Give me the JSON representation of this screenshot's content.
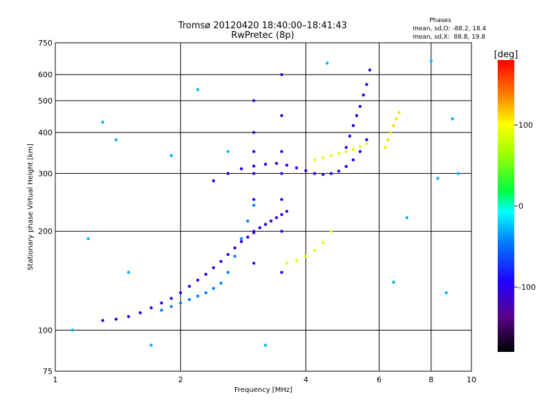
{
  "chart_data": {
    "type": "scatter",
    "title": "Tromsø 20120420 18:40:00–18:41:43",
    "subtitle": "RwPretec (8p)",
    "xlabel": "Frequency [MHz]",
    "ylabel": "Stationary phase Virtual Height [km]",
    "x_scale": "log",
    "y_scale": "log",
    "xlim": [
      1,
      10
    ],
    "ylim": [
      75,
      750
    ],
    "x_ticks": [
      1,
      2,
      4,
      6,
      8,
      10
    ],
    "y_ticks": [
      75,
      100,
      200,
      300,
      400,
      500,
      600,
      750
    ],
    "grid": true,
    "stats": {
      "heading": "Phases",
      "line1": "mean, sd,O: -88.2, 18.4",
      "line2": "mean, sd,X:  88.8, 19.8"
    },
    "colorbar": {
      "label": "[deg]",
      "range": [
        -180,
        180
      ],
      "ticks": [
        {
          "value": 100,
          "label": "100"
        },
        {
          "value": 0,
          "label": "0"
        },
        {
          "value": -100,
          "label": "-100"
        }
      ]
    },
    "series": [
      {
        "trace": "O-mode lower band (blue)",
        "phase_deg": -105,
        "x": [
          1.3,
          1.4,
          1.5,
          1.6,
          1.7,
          1.8,
          1.9,
          2.0,
          2.1,
          2.2,
          2.3,
          2.4,
          2.5,
          2.6,
          2.7,
          2.8,
          2.9,
          3.0,
          3.1,
          3.2,
          3.3,
          3.4,
          3.5,
          3.6
        ],
        "y": [
          107,
          108,
          110,
          113,
          117,
          121,
          125,
          130,
          136,
          142,
          148,
          155,
          162,
          170,
          178,
          186,
          192,
          198,
          205,
          210,
          215,
          220,
          225,
          230
        ]
      },
      {
        "trace": "O-mode lower band (cyan)",
        "phase_deg": -60,
        "x": [
          1.8,
          1.9,
          2.0,
          2.1,
          2.2,
          2.3,
          2.4,
          2.5,
          2.6,
          2.7,
          2.8,
          2.9,
          3.0
        ],
        "y": [
          115,
          118,
          121,
          124,
          127,
          130,
          134,
          139,
          150,
          168,
          190,
          215,
          240
        ]
      },
      {
        "trace": "O-mode F-region band (blue)",
        "phase_deg": -100,
        "x": [
          2.4,
          2.6,
          2.8,
          3.0,
          3.2,
          3.4,
          3.6,
          3.8,
          4.0,
          4.2,
          4.4,
          4.6,
          4.8,
          5.0,
          5.2,
          5.4,
          5.6
        ],
        "y": [
          285,
          300,
          310,
          316,
          320,
          322,
          318,
          312,
          306,
          300,
          298,
          300,
          305,
          315,
          330,
          350,
          380
        ]
      },
      {
        "trace": "O-mode upper cusp (blue)",
        "phase_deg": -110,
        "x": [
          5.0,
          5.1,
          5.2,
          5.3,
          5.4,
          5.5,
          5.6,
          5.7
        ],
        "y": [
          360,
          390,
          420,
          450,
          480,
          520,
          560,
          620
        ]
      },
      {
        "trace": "O-mode vertical column (blue)",
        "phase_deg": -110,
        "x": [
          3.0,
          3.0,
          3.0,
          3.0,
          3.0,
          3.0,
          3.0,
          3.5,
          3.5,
          3.5,
          3.5,
          3.5,
          3.5,
          3.5
        ],
        "y": [
          160,
          200,
          250,
          300,
          350,
          400,
          500,
          150,
          200,
          250,
          300,
          350,
          450,
          600
        ]
      },
      {
        "trace": "X-mode lower band (yellow)",
        "phase_deg": 90,
        "x": [
          3.6,
          3.8,
          4.0,
          4.2,
          4.4,
          4.6
        ],
        "y": [
          160,
          163,
          168,
          175,
          185,
          200
        ]
      },
      {
        "trace": "X-mode upper band (yellow)",
        "phase_deg": 90,
        "x": [
          4.2,
          4.4,
          4.6,
          4.8,
          5.0,
          5.2,
          5.4,
          5.6
        ],
        "y": [
          330,
          335,
          340,
          345,
          350,
          355,
          362,
          370
        ]
      },
      {
        "trace": "X-mode far band (yellow)",
        "phase_deg": 110,
        "x": [
          6.2,
          6.3,
          6.4,
          6.5,
          6.6,
          6.7
        ],
        "y": [
          360,
          380,
          400,
          420,
          440,
          460
        ]
      },
      {
        "trace": "Scattered noise",
        "phase_deg": -40,
        "x": [
          1.1,
          1.2,
          1.3,
          1.4,
          1.5,
          1.7,
          1.9,
          2.2,
          2.6,
          3.2,
          4.5,
          6.5,
          7.0,
          8.0,
          8.3,
          8.7,
          9.0,
          9.3
        ],
        "y": [
          100,
          190,
          430,
          380,
          150,
          90,
          340,
          540,
          350,
          90,
          650,
          140,
          220,
          660,
          290,
          130,
          440,
          300
        ]
      }
    ]
  }
}
